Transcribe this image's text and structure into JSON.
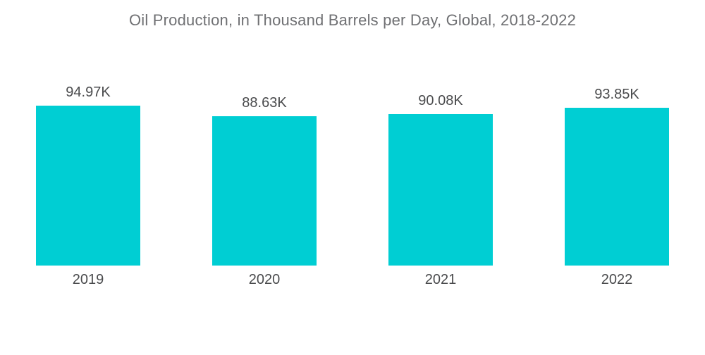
{
  "header": {
    "title": "Oil Production, in Thousand Barrels per Day, Global, 2018-2022"
  },
  "colors": {
    "bar": "#00ced3",
    "title_text": "#6f7073",
    "label_text": "#4a4b4d",
    "background": "#ffffff"
  },
  "chart_data": {
    "type": "bar",
    "title": "Oil Production, in Thousand Barrels per Day, Global, 2018-2022",
    "categories": [
      "2019",
      "2020",
      "2021",
      "2022"
    ],
    "values": [
      94.97,
      88.63,
      90.08,
      93.85
    ],
    "value_labels": [
      "94.97K",
      "88.63K",
      "90.08K",
      "93.85K"
    ],
    "unit": "Thousand Barrels per Day (K = thousand)",
    "xlabel": "",
    "ylabel": "",
    "ylim": [
      0,
      94.97
    ],
    "grid": false,
    "axes_shown": false,
    "legend": "none",
    "data_labels_position": "above-bars"
  }
}
